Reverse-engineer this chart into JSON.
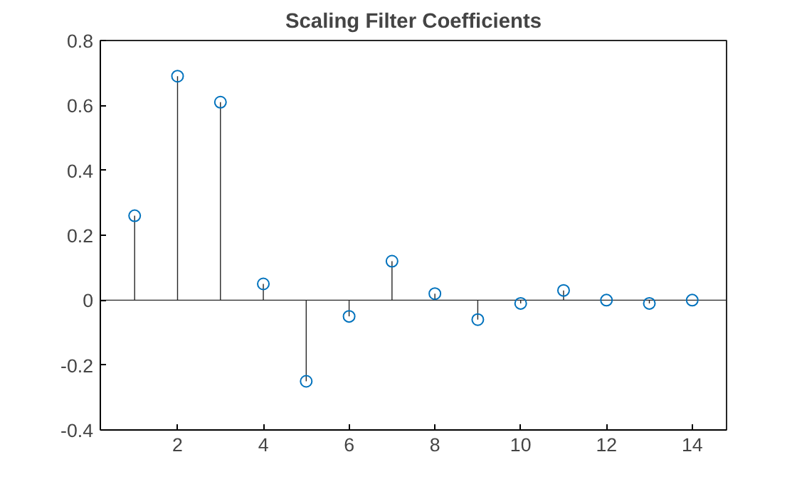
{
  "chart_data": {
    "type": "lollipop",
    "title": "Scaling Filter Coefficients",
    "x": [
      1,
      2,
      3,
      4,
      5,
      6,
      7,
      8,
      9,
      10,
      11,
      12,
      13,
      14
    ],
    "series": [
      {
        "color": "#0072bd",
        "values": [
          0.26,
          0.69,
          0.61,
          0.05,
          -0.25,
          -0.05,
          0.12,
          0.02,
          -0.06,
          -0.01,
          0.03,
          0.0,
          -0.01,
          0.0
        ]
      }
    ],
    "xlim": [
      0.2,
      14.8
    ],
    "xticks": [
      2,
      4,
      6,
      8,
      10,
      12,
      14
    ],
    "ylim": [
      -0.4,
      0.8
    ],
    "yticks": [
      {
        "value": -0.4,
        "label": "-0.4"
      },
      {
        "value": -0.2,
        "label": "-0.2"
      },
      0,
      0.2,
      0.4,
      0.6,
      0.8
    ],
    "marker": "circle"
  }
}
